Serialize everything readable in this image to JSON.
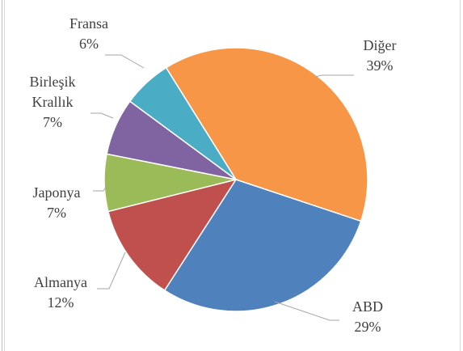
{
  "chart_data": {
    "type": "pie",
    "categories": [
      "Diğer",
      "ABD",
      "Almanya",
      "Japonya",
      "Birleşik Krallık",
      "Fransa"
    ],
    "values": [
      39,
      29,
      12,
      7,
      7,
      6
    ],
    "value_labels": [
      "39%",
      "29%",
      "12%",
      "7%",
      "7%",
      "6%"
    ],
    "colors": [
      "#f79646",
      "#4f81bd",
      "#c0504d",
      "#9bbb59",
      "#8064a2",
      "#4bacc6"
    ]
  }
}
